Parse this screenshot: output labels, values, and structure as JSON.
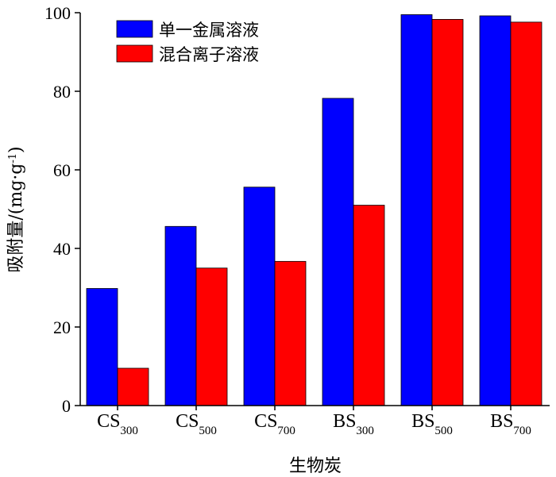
{
  "chart_data": {
    "type": "bar",
    "title": "",
    "xlabel": "生物炭",
    "ylabel": "吸附量/(mg·g⁻¹)",
    "ylabel_parts": {
      "main": "吸附量/(mg·g",
      "sup": "-1",
      "close": ")"
    },
    "categories": [
      {
        "label": "CS300",
        "main": "CS",
        "sub": "300"
      },
      {
        "label": "CS500",
        "main": "CS",
        "sub": "500"
      },
      {
        "label": "CS700",
        "main": "CS",
        "sub": "700"
      },
      {
        "label": "BS300",
        "main": "BS",
        "sub": "300"
      },
      {
        "label": "BS500",
        "main": "BS",
        "sub": "500"
      },
      {
        "label": "BS700",
        "main": "BS",
        "sub": "700"
      }
    ],
    "series": [
      {
        "name": "单一金属溶液",
        "color": "#0000ff",
        "values": [
          29.8,
          45.6,
          55.6,
          78.2,
          99.5,
          99.2
        ]
      },
      {
        "name": "混合离子溶液",
        "color": "#ff0000",
        "values": [
          9.5,
          35.0,
          36.7,
          51.0,
          98.3,
          97.6
        ]
      }
    ],
    "ylim": [
      0,
      100
    ],
    "yticks": [
      "0",
      "20",
      "40",
      "60",
      "80",
      "100"
    ],
    "grid": false,
    "legend_position": "top-left"
  }
}
